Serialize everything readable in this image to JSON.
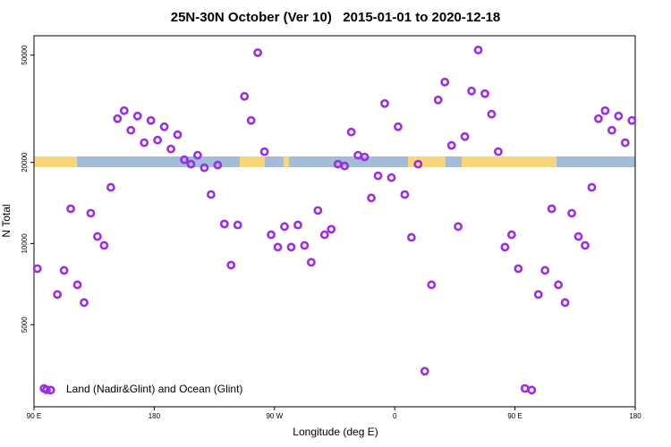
{
  "chart_data": {
    "type": "scatter",
    "title": "25N-30N October (Ver 10)   2015-01-01 to 2020-12-18",
    "x_label": "Longitude (deg E)",
    "y_label": "N Total",
    "log_y": true,
    "legend": "lower left",
    "xlim": [
      90,
      540
    ],
    "ylim": [
      2480,
      59000
    ],
    "xticks": [
      {
        "value": 90,
        "label": "90 E"
      },
      180,
      {
        "value": 270,
        "label": "90 W"
      },
      {
        "value": 360,
        "label": "0"
      },
      {
        "value": 450,
        "label": "90 E"
      },
      {
        "value": 540,
        "label": "180"
      }
    ],
    "yticks": [
      5000,
      10000,
      20000,
      50000
    ],
    "series": [
      {
        "name": "Land (Nadir&Glint) and Ocean (Glint)",
        "color": "#9b2de6",
        "x": [
          92.5,
          97.5,
          102.5,
          107.5,
          112.5,
          117.5,
          122.5,
          127.5,
          132.5,
          137.5,
          142.5,
          147.5,
          152.5,
          157.5,
          162.5,
          167.5,
          172.5,
          177.5,
          182.5,
          187.5,
          192.5,
          197.5,
          202.5,
          207.5,
          212.5,
          217.5,
          222.5,
          227.5,
          232.5,
          237.5,
          242.5,
          247.5,
          252.5,
          257.5,
          262.5,
          267.5,
          272.5,
          277.5,
          282.5,
          287.5,
          292.5,
          297.5,
          302.5,
          307.5,
          312.5,
          317.5,
          322.5,
          327.5,
          332.5,
          337.5,
          342.5,
          347.5,
          352.5,
          357.5,
          362.5,
          367.5,
          372.5,
          377.5,
          382.5,
          387.5,
          392.5,
          397.5,
          402.5,
          407.5,
          412.5,
          417.5,
          422.5,
          427.5,
          432.5,
          437.5,
          442.5,
          447.5,
          452.5,
          457.5,
          462.5,
          467.5,
          472.5,
          477.5,
          482.5,
          487.5,
          492.5,
          497.5,
          502.5,
          507.5,
          512.5,
          517.5,
          522.5,
          527.5,
          532.5,
          537.5
        ],
        "values": [
          8070,
          2900,
          2860,
          6470,
          7950,
          13460,
          7030,
          6040,
          12960,
          10620,
          9840,
          16160,
          29060,
          31120,
          26320,
          29720,
          23660,
          28620,
          24200,
          27120,
          22420,
          25340,
          20460,
          19700,
          21260,
          19100,
          15200,
          19540,
          11820,
          8320,
          11720,
          35160,
          28620,
          51060,
          21920,
          10780,
          9700,
          11560,
          9700,
          11720,
          9840,
          8520,
          13260,
          10780,
          11300,
          19700,
          19400,
          25920,
          21260,
          20940,
          14760,
          17840,
          33080,
          17560,
          27120,
          15200,
          10540,
          19700,
          3360,
          7030,
          34100,
          39720,
          23120,
          11560,
          24940,
          36800,
          52240,
          35980,
          30200,
          21920,
          9700,
          10780,
          8070,
          2900,
          2860,
          6470,
          7950,
          13460,
          7030,
          6040,
          12960,
          10620,
          9840,
          16160,
          29060,
          31120,
          26320,
          29720,
          23660,
          28620
        ]
      }
    ]
  }
}
